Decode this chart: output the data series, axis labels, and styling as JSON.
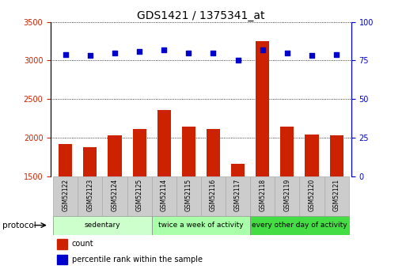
{
  "title": "GDS1421 / 1375341_at",
  "samples": [
    "GSM52122",
    "GSM52123",
    "GSM52124",
    "GSM52125",
    "GSM52114",
    "GSM52115",
    "GSM52116",
    "GSM52117",
    "GSM52118",
    "GSM52119",
    "GSM52120",
    "GSM52121"
  ],
  "counts": [
    1920,
    1870,
    2030,
    2110,
    2360,
    2140,
    2110,
    1660,
    3250,
    2140,
    2040,
    2030
  ],
  "percentiles": [
    79,
    78,
    80,
    81,
    82,
    80,
    80,
    75,
    82,
    80,
    78,
    79
  ],
  "bar_color": "#cc2200",
  "dot_color": "#0000cc",
  "ylim_left": [
    1500,
    3500
  ],
  "ylim_right": [
    0,
    100
  ],
  "yticks_left": [
    1500,
    2000,
    2500,
    3000,
    3500
  ],
  "yticks_right": [
    0,
    25,
    50,
    75,
    100
  ],
  "groups": [
    {
      "label": "sedentary",
      "start": 0,
      "end": 4,
      "color": "#ccffcc"
    },
    {
      "label": "twice a week of activity",
      "start": 4,
      "end": 8,
      "color": "#aaffaa"
    },
    {
      "label": "every other day of activity",
      "start": 8,
      "end": 12,
      "color": "#44dd44"
    }
  ],
  "protocol_label": "protocol",
  "legend": [
    {
      "label": "count",
      "color": "#cc2200"
    },
    {
      "label": "percentile rank within the sample",
      "color": "#0000cc"
    }
  ],
  "grid_color": "#000000",
  "bar_width": 0.55,
  "title_fontsize": 10,
  "tick_fontsize": 7,
  "label_fontsize": 5.5,
  "group_fontsize": 6.5,
  "legend_fontsize": 7,
  "protocol_fontsize": 7.5
}
